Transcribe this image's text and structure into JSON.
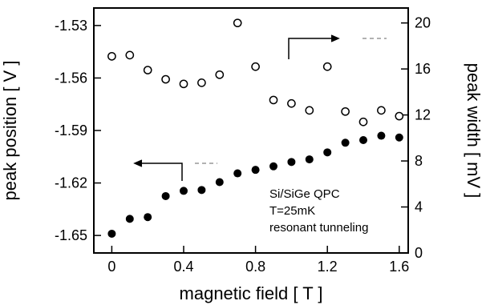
{
  "chart_data": {
    "type": "scatter",
    "title": "",
    "xlabel": "magnetic field [ T ]",
    "ylabel_left": "peak position [ V ]",
    "ylabel_right": "peak width [ mV ]",
    "xlim": [
      -0.1,
      1.65
    ],
    "ylim_left": [
      -1.66,
      -1.52
    ],
    "ylim_right": [
      0,
      21.3
    ],
    "x_ticks": [
      0,
      0.4,
      0.8,
      1.2,
      1.6
    ],
    "x_tick_labels": [
      "0",
      "0.4",
      "0.8",
      "1.2",
      "1.6"
    ],
    "y_left_ticks": [
      -1.53,
      -1.56,
      -1.59,
      -1.62,
      -1.65
    ],
    "y_left_tick_labels": [
      "-1.53",
      "-1.56",
      "-1.59",
      "-1.62",
      "-1.65"
    ],
    "y_right_ticks": [
      0,
      4,
      8,
      12,
      16,
      20
    ],
    "y_right_tick_labels": [
      "0",
      "4",
      "8",
      "12",
      "16",
      "20"
    ],
    "grid": false,
    "series": [
      {
        "marker": "filled-circle",
        "axis": "left",
        "x": [
          0,
          0.1,
          0.2,
          0.3,
          0.4,
          0.5,
          0.6,
          0.7,
          0.8,
          0.9,
          1.0,
          1.1,
          1.2,
          1.3,
          1.4,
          1.5,
          1.6
        ],
        "values": [
          -1.649,
          -1.6405,
          -1.6395,
          -1.6275,
          -1.6245,
          -1.624,
          -1.6195,
          -1.6145,
          -1.6125,
          -1.6105,
          -1.608,
          -1.6065,
          -1.6025,
          -1.597,
          -1.5955,
          -1.593,
          -1.594
        ]
      },
      {
        "marker": "open-circle",
        "axis": "right",
        "x": [
          0,
          0.1,
          0.2,
          0.3,
          0.4,
          0.5,
          0.6,
          0.7,
          0.8,
          0.9,
          1.0,
          1.1,
          1.2,
          1.3,
          1.4,
          1.5,
          1.6
        ],
        "values": [
          17.1,
          17.2,
          15.9,
          15.1,
          14.7,
          14.8,
          15.5,
          20.0,
          16.2,
          13.3,
          13.0,
          12.4,
          16.2,
          12.3,
          11.4,
          12.4,
          11.9
        ]
      }
    ],
    "annotations": [
      "Si/SiGe QPC",
      "T=25mK",
      "resonant tunneling"
    ]
  }
}
